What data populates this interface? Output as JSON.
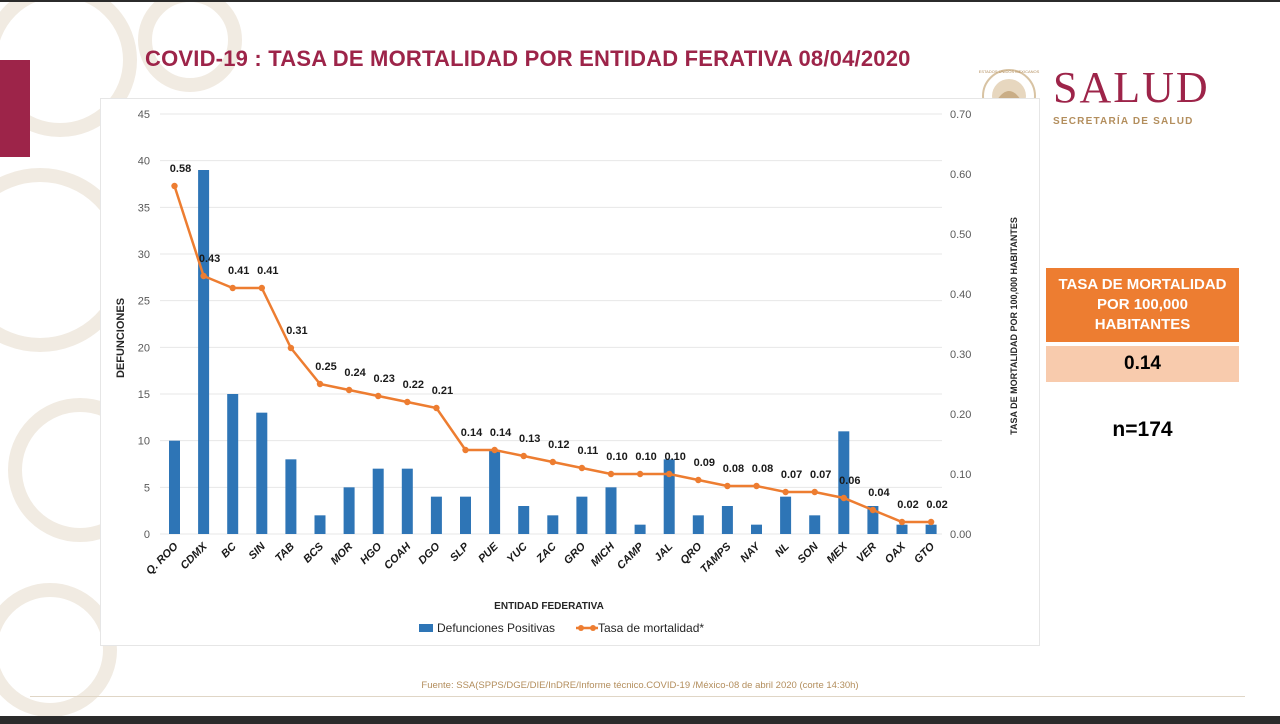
{
  "title": "COVID-19 : TASA DE MORTALIDAD POR ENTIDAD FERATIVA 08/04/2020",
  "logo": {
    "word": "SALUD",
    "subtitle": "SECRETARÍA DE SALUD",
    "seal_text": "ESTADOS UNIDOS MEXICANOS"
  },
  "side_panel": {
    "header": "TASA DE MORTALIDAD POR 100,000 HABITANTES",
    "value": "0.14",
    "n": "n=174"
  },
  "source": "Fuente: SSA(SPPS/DGE/DIE/InDRE/Informe técnico.COVID-19 /México-08 de abril 2020 (corte 14:30h)",
  "colors": {
    "title": "#9d2449",
    "accent_bar": "#9d2449",
    "bar": "#2e75b6",
    "line": "#ed7d31",
    "side_header_bg": "#ed7d31",
    "side_value_bg": "#f8cbad",
    "logo": "#9d2449",
    "logo_sub": "#b38e5d",
    "axis_text": "#595959",
    "grid": "#e7e7e7",
    "watermark": "#f1ebe2",
    "source_text": "#b38e5d"
  },
  "chart_data": {
    "type": "bar",
    "xlabel": "ENTIDAD FEDERATIVA",
    "ylabel": "DEFUNCIONES",
    "y2label": "TASA DE MORTALIDAD POR 100,000 HABITANTES",
    "ylim": [
      0,
      45
    ],
    "yticks": [
      "0",
      "5",
      "10",
      "15",
      "20",
      "25",
      "30",
      "35",
      "40",
      "45"
    ],
    "y2lim": [
      0,
      0.7
    ],
    "y2ticks": [
      "0.00",
      "0.10",
      "0.20",
      "0.30",
      "0.40",
      "0.50",
      "0.60",
      "0.70"
    ],
    "grid": true,
    "legend_position": "bottom",
    "categories": [
      "Q. ROO",
      "CDMX",
      "BC",
      "SIN",
      "TAB",
      "BCS",
      "MOR",
      "HGO",
      "COAH",
      "DGO",
      "SLP",
      "PUE",
      "YUC",
      "ZAC",
      "GRO",
      "MICH",
      "CAMP",
      "JAL",
      "QRO",
      "TAMPS",
      "NAY",
      "NL",
      "SON",
      "MEX",
      "VER",
      "OAX",
      "GTO"
    ],
    "series": [
      {
        "name": "Defunciones Positivas",
        "type": "bar",
        "axis": "left",
        "values": [
          10,
          39,
          15,
          13,
          8,
          2,
          5,
          7,
          7,
          4,
          4,
          9,
          3,
          2,
          4,
          5,
          1,
          8,
          2,
          3,
          1,
          4,
          2,
          11,
          3,
          1,
          1
        ]
      },
      {
        "name": "Tasa de mortalidad*",
        "type": "line",
        "axis": "right",
        "values": [
          0.58,
          0.43,
          0.41,
          0.41,
          0.31,
          0.25,
          0.24,
          0.23,
          0.22,
          0.21,
          0.14,
          0.14,
          0.13,
          0.12,
          0.11,
          0.1,
          0.1,
          0.1,
          0.09,
          0.08,
          0.08,
          0.07,
          0.07,
          0.06,
          0.04,
          0.02,
          0.02
        ],
        "labels": [
          "0.58",
          "0.43",
          "0.41",
          "0.41",
          "0.31",
          "0.25",
          "0.24",
          "0.23",
          "0.22",
          "0.21",
          "0.14",
          "0.14",
          "0.13",
          "0.12",
          "0.11",
          "0.10",
          "0.10",
          "0.10",
          "0.09",
          "0.08",
          "0.08",
          "0.07",
          "0.07",
          "0.06",
          "0.04",
          "0.02",
          "0.02"
        ]
      }
    ]
  }
}
